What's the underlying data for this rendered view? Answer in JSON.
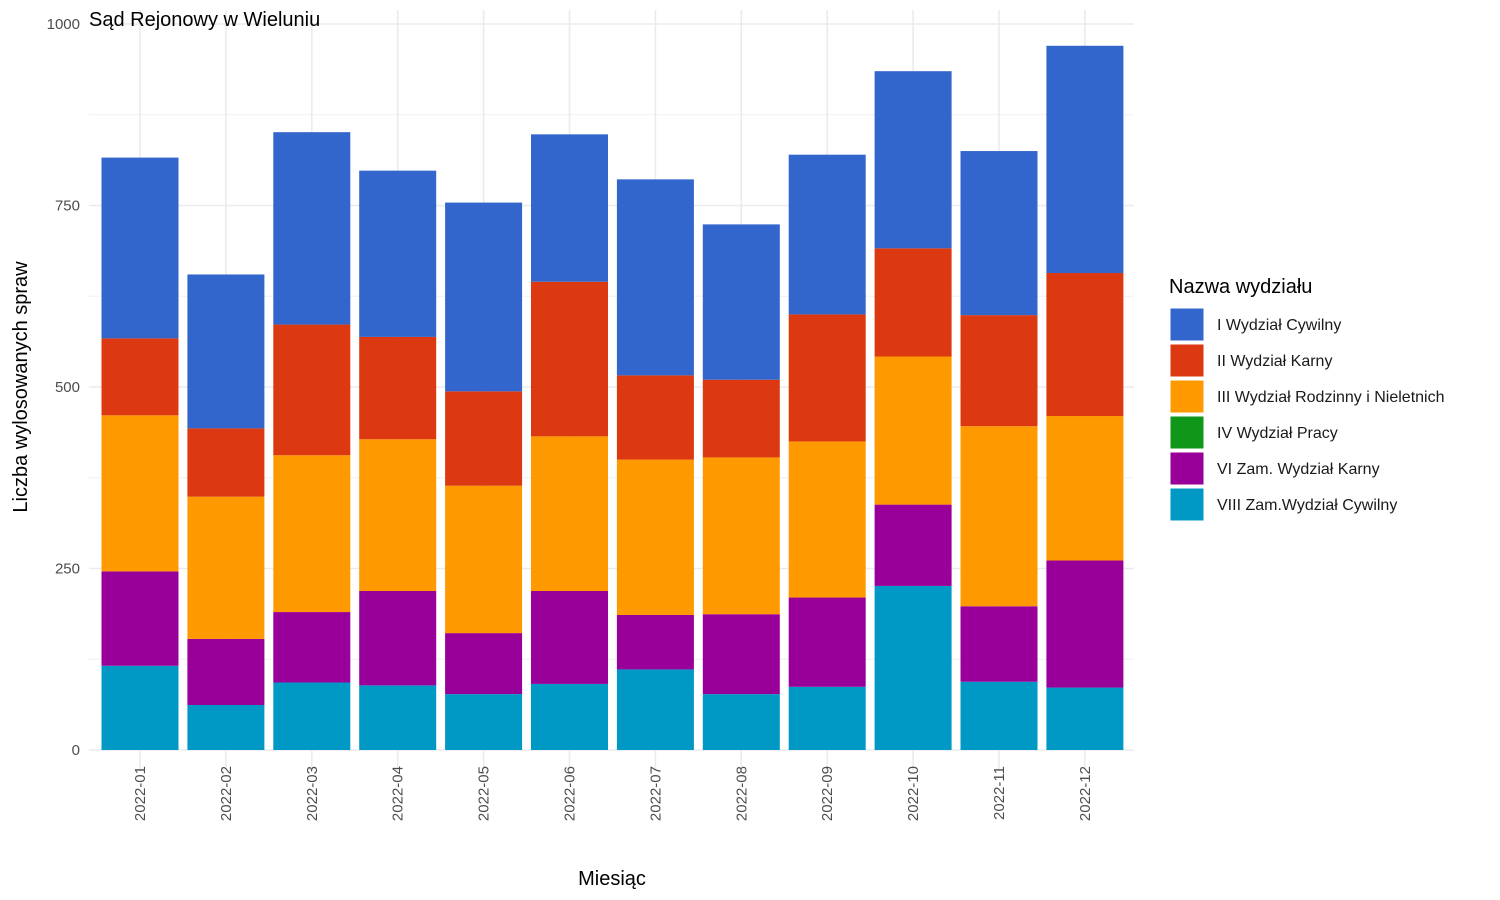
{
  "chart_data": {
    "type": "bar",
    "stacked": true,
    "title": "Sąd Rejonowy w Wieluniu",
    "xlabel": "Miesiąc",
    "ylabel": "Liczba wylosowanych spraw",
    "ylim": [
      0,
      1000
    ],
    "yticks": [
      0,
      250,
      500,
      750,
      1000
    ],
    "grid": true,
    "legend_title": "Nazwa wydziału",
    "legend_position": "right",
    "categories": [
      "2022-01",
      "2022-02",
      "2022-03",
      "2022-04",
      "2022-05",
      "2022-06",
      "2022-07",
      "2022-08",
      "2022-09",
      "2022-10",
      "2022-11",
      "2022-12"
    ],
    "series": [
      {
        "name": "VIII Zam.Wydział Cywilny",
        "color": "#0099c6",
        "values": [
          116,
          62,
          93,
          89,
          77,
          91,
          111,
          77,
          87,
          226,
          94,
          86
        ]
      },
      {
        "name": "VI Zam. Wydział Karny",
        "color": "#990099",
        "values": [
          130,
          91,
          97,
          130,
          84,
          128,
          75,
          110,
          123,
          112,
          104,
          175
        ]
      },
      {
        "name": "IV Wydział Pracy",
        "color": "#109618",
        "values": [
          0,
          0,
          0,
          0,
          0,
          0,
          0,
          0,
          0,
          0,
          0,
          0
        ]
      },
      {
        "name": "III Wydział Rodzinny i Nieletnich",
        "color": "#ff9900",
        "values": [
          215,
          196,
          216,
          209,
          203,
          213,
          214,
          216,
          215,
          204,
          248,
          199
        ]
      },
      {
        "name": "II Wydział Karny",
        "color": "#dc3912",
        "values": [
          106,
          94,
          180,
          141,
          130,
          213,
          116,
          107,
          175,
          149,
          153,
          197
        ]
      },
      {
        "name": "I Wydział Cywilny",
        "color": "#3366cc",
        "values": [
          249,
          212,
          265,
          229,
          260,
          203,
          270,
          214,
          220,
          244,
          226,
          313
        ]
      }
    ],
    "legend_order": [
      "I Wydział Cywilny",
      "II Wydział Karny",
      "III Wydział Rodzinny i Nieletnich",
      "IV Wydział Pracy",
      "VI Zam. Wydział Karny",
      "VIII Zam.Wydział Cywilny"
    ]
  }
}
